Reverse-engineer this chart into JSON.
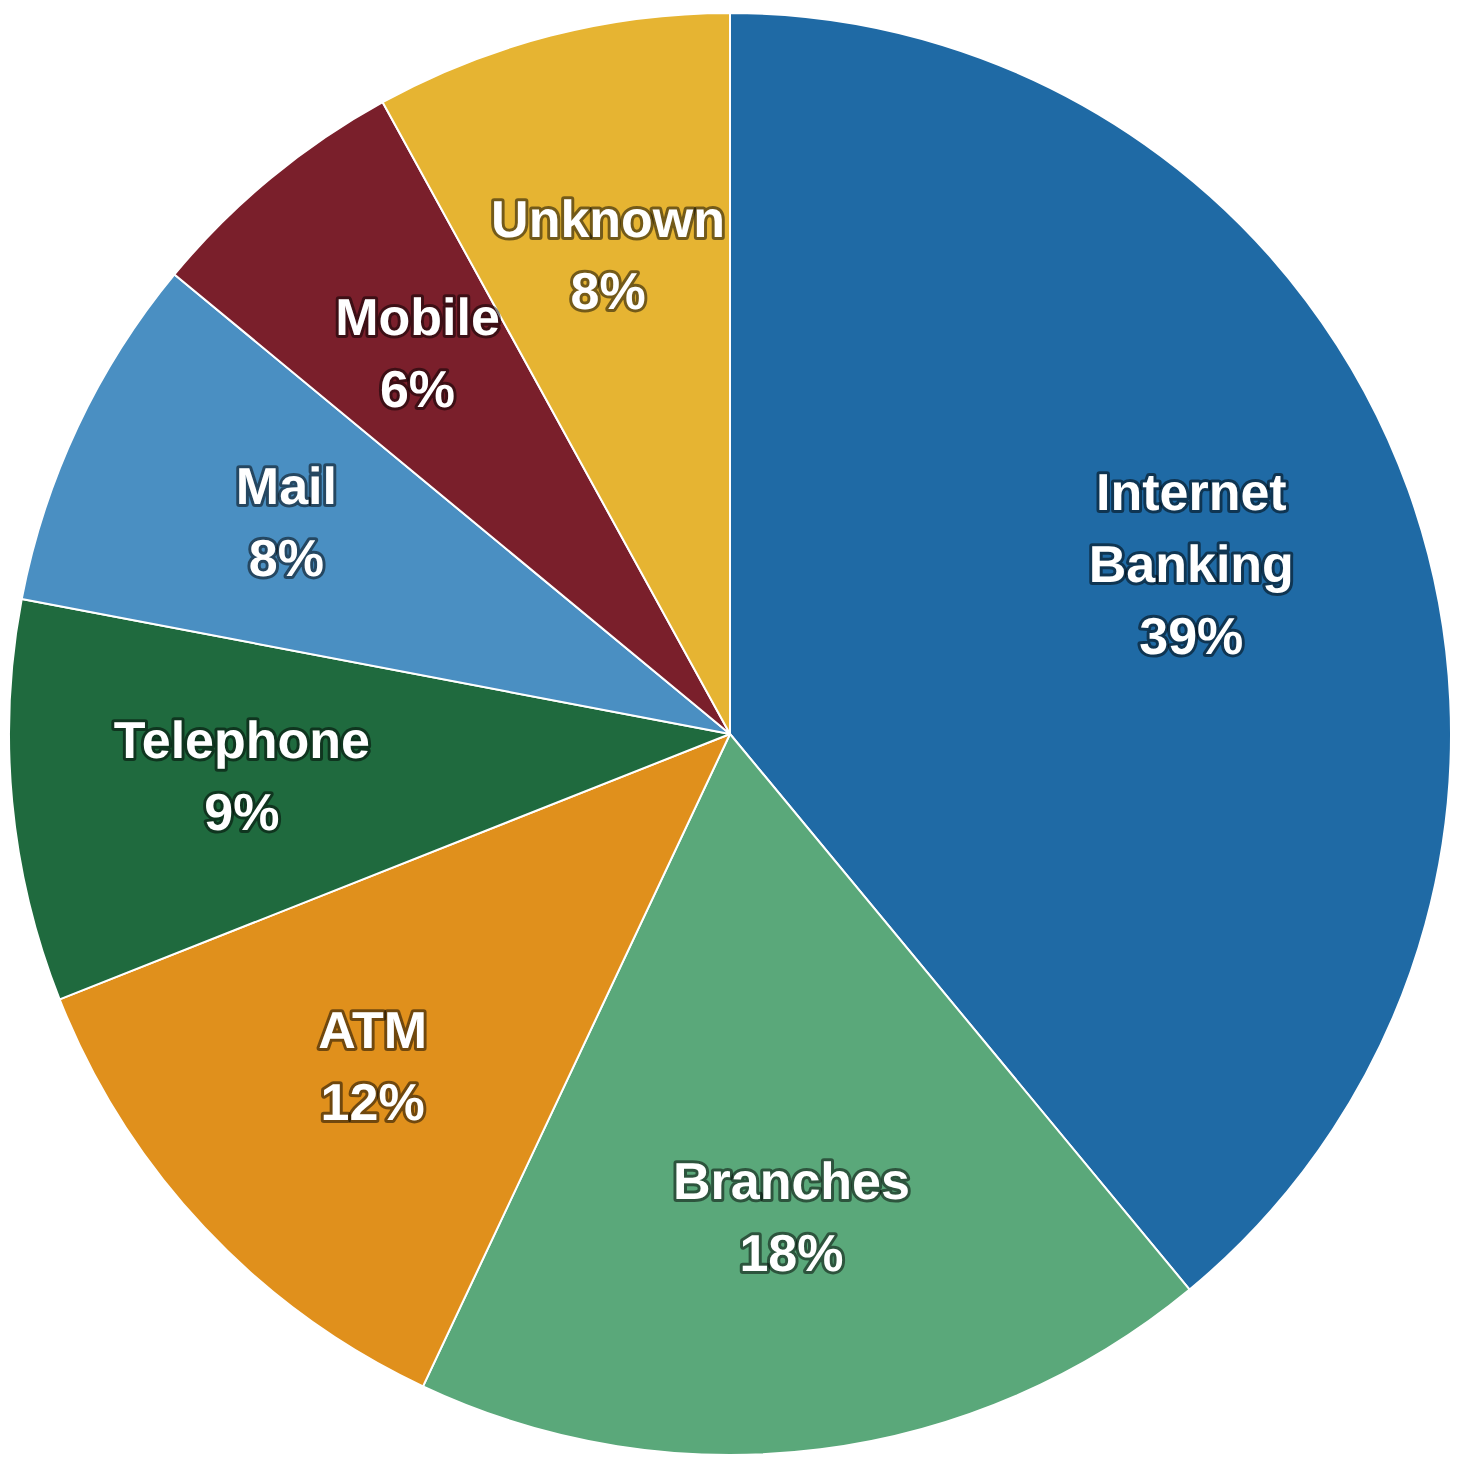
{
  "chart_data": {
    "type": "pie",
    "categories": [
      "Internet Banking",
      "Branches",
      "ATM",
      "Telephone",
      "Mail",
      "Mobile",
      "Unknown"
    ],
    "values": [
      39,
      18,
      12,
      9,
      8,
      6,
      8
    ],
    "value_labels": [
      "39%",
      "18%",
      "12%",
      "9%",
      "8%",
      "6%",
      "8%"
    ],
    "colors": [
      "#1f6aa5",
      "#5aa87a",
      "#e0901c",
      "#1f6a3e",
      "#4a8fc2",
      "#7a1f2b",
      "#e6b432"
    ],
    "legend": false
  }
}
